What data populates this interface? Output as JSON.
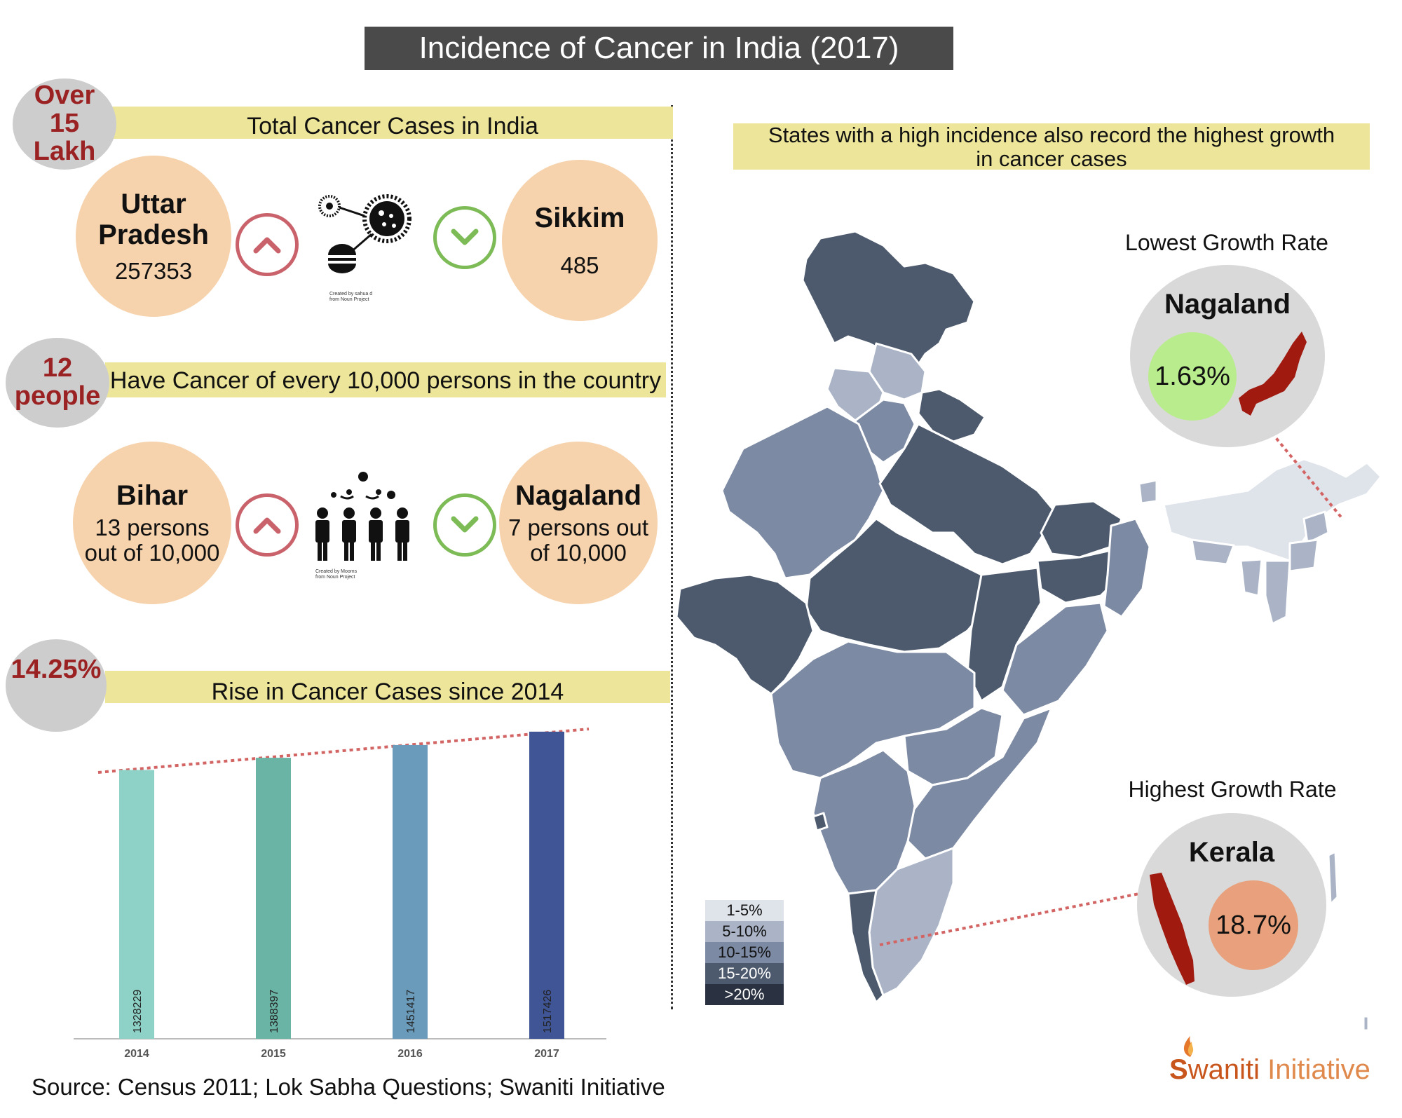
{
  "title": "Incidence of Cancer in India (2017)",
  "total_cases": {
    "badge": [
      "Over",
      "15",
      "Lakh"
    ],
    "label": "Total Cancer Cases in India",
    "high": {
      "name_line1": "Uttar",
      "name_line2": "Pradesh",
      "value": "257353"
    },
    "low": {
      "name": "Sikkim",
      "value": "485"
    },
    "icon_credit_line1": "Created by sahua d",
    "icon_credit_line2": "from Noun Project"
  },
  "per_10000": {
    "badge": [
      "12",
      "people"
    ],
    "label": "Have Cancer of every 10,000 persons in the country",
    "high": {
      "name": "Bihar",
      "line1": "13 persons",
      "line2": "out of 10,000"
    },
    "low": {
      "name": "Nagaland",
      "line1": "7 persons out",
      "line2": "of 10,000"
    },
    "icon_credit_line1": "Created by Mooms",
    "icon_credit_line2": "from Noun Project"
  },
  "rise": {
    "badge": "14.25%",
    "label": "Rise in Cancer Cases since 2014"
  },
  "chart_data": {
    "type": "bar",
    "categories": [
      "2014",
      "2015",
      "2016",
      "2017"
    ],
    "values": [
      1328229,
      1388397,
      1451417,
      1517426
    ],
    "ylim": [
      0,
      1600000
    ],
    "colors": [
      "#8ed1c6",
      "#6ab4a6",
      "#6a9bbb",
      "#3f5595"
    ],
    "trend_line": true
  },
  "map": {
    "heading_line1": "States with a high incidence also record the highest growth",
    "heading_line2": "in cancer cases",
    "lowest_label": "Lowest Growth Rate",
    "lowest_state": "Nagaland",
    "lowest_value": "1.63%",
    "highest_label": "Highest Growth Rate",
    "highest_state": "Kerala",
    "highest_value": "18.7%",
    "legend": [
      {
        "label": "1-5%",
        "color": "#dfe3ea"
      },
      {
        "label": "5-10%",
        "color": "#aab4c6"
      },
      {
        "label": "10-15%",
        "color": "#7d8aa3"
      },
      {
        "label": "15-20%",
        "color": "#4d5a6d"
      },
      {
        "label": ">20%",
        "color": "#2a3140"
      }
    ]
  },
  "source": "Source: Census 2011; Lok Sabha Questions; Swaniti Initiative",
  "logo": {
    "text_s": "S",
    "text_rest": "waniti ",
    "text_initiative": "Initiative"
  }
}
